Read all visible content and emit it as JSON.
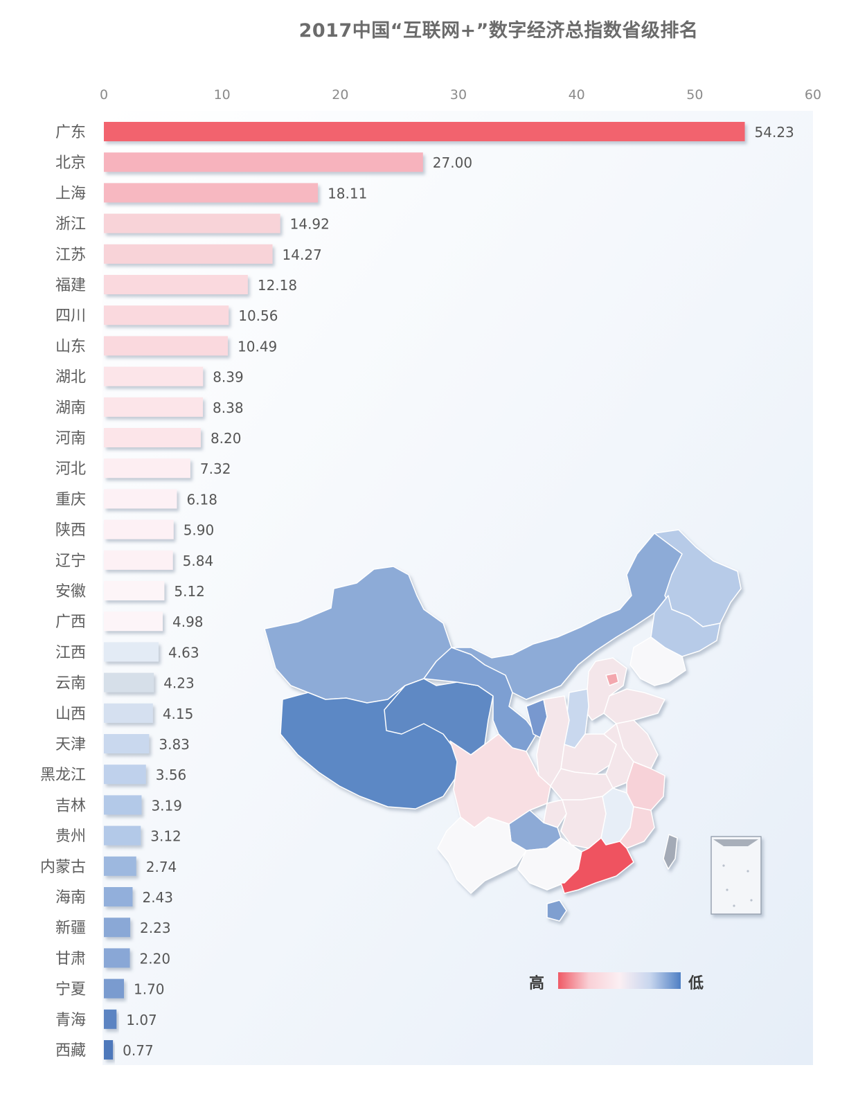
{
  "chart_data": {
    "type": "bar",
    "orientation": "horizontal",
    "title": "2017中国“互联网+”数字经济总指数省级排名",
    "xlim": [
      0,
      60
    ],
    "xticks": [
      0,
      10,
      20,
      30,
      40,
      50,
      60
    ],
    "categories": [
      "广东",
      "北京",
      "上海",
      "浙江",
      "江苏",
      "福建",
      "四川",
      "山东",
      "湖北",
      "湖南",
      "河南",
      "河北",
      "重庆",
      "陕西",
      "辽宁",
      "安徽",
      "广西",
      "江西",
      "云南",
      "山西",
      "天津",
      "黑龙江",
      "吉林",
      "贵州",
      "内蒙古",
      "海南",
      "新疆",
      "甘肃",
      "宁夏",
      "青海",
      "西藏"
    ],
    "values": [
      54.23,
      27.0,
      18.11,
      14.92,
      14.27,
      12.18,
      10.56,
      10.49,
      8.39,
      8.38,
      8.2,
      7.32,
      6.18,
      5.9,
      5.84,
      5.12,
      4.98,
      4.63,
      4.23,
      4.15,
      3.83,
      3.56,
      3.19,
      3.12,
      2.74,
      2.43,
      2.23,
      2.2,
      1.7,
      1.07,
      0.77
    ],
    "value_labels": [
      "54.23",
      "27.00",
      "18.11",
      "14.92",
      "14.27",
      "12.18",
      "10.56",
      "10.49",
      "8.39",
      "8.38",
      "8.20",
      "7.32",
      "6.18",
      "5.90",
      "5.84",
      "5.12",
      "4.98",
      "4.63",
      "4.23",
      "4.15",
      "3.83",
      "3.56",
      "3.19",
      "3.12",
      "2.74",
      "2.43",
      "2.23",
      "2.20",
      "1.70",
      "1.07",
      "0.77"
    ],
    "bar_colors": [
      "#f2646e",
      "#f7b3bd",
      "#f7b8c1",
      "#f8d3d8",
      "#f8d3d8",
      "#fad9de",
      "#fad9de",
      "#fad9de",
      "#fce5e9",
      "#fce5e9",
      "#fce5e9",
      "#fdeef2",
      "#fdf1f5",
      "#fdf1f5",
      "#fdf1f5",
      "#fdf5f8",
      "#fdf5f8",
      "#e3ebf5",
      "#d6dfe9",
      "#d5e0f0",
      "#c9d8ee",
      "#bfd1ec",
      "#b3c9e8",
      "#b3c9e8",
      "#9db8df",
      "#92afdb",
      "#8aa8d6",
      "#89a7d6",
      "#7a9bcf",
      "#5b84c2",
      "#4e78bb"
    ],
    "legend": {
      "high": "高",
      "low": "低",
      "gradient": [
        "#ef5a66",
        "#f9d0d6",
        "#fbeff3",
        "#c8d6ee",
        "#4f7fc4"
      ],
      "placement": "bottom-right"
    },
    "map": {
      "region": "China provinces",
      "colors": {
        "guangdong": "#ef5261",
        "beijing": "#f3a7ae",
        "xinjiang": "#8dabd7",
        "tibet": "#5b88c5",
        "qinghai": "#5f89c4",
        "gansu": "#7d9fd2",
        "inner_mongolia": "#8dabd7",
        "heilongjiang": "#b7cbe8",
        "jilin": "#b7cbe8",
        "liaoning": "#f8f8fa",
        "sichuan": "#f8dfe3",
        "yunnan": "#f8f8fa",
        "guizhou": "#8daad6",
        "guangxi": "#f8f8fa",
        "hainan": "#7f9fd0",
        "taiwan": "#a3aab6",
        "jiangxi": "#e7eef7",
        "fujian": "#f7d8dd",
        "zhejiang": "#f7d2d8",
        "shanxi": "#c9d8ee",
        "ningxia": "#7898cf"
      }
    }
  }
}
